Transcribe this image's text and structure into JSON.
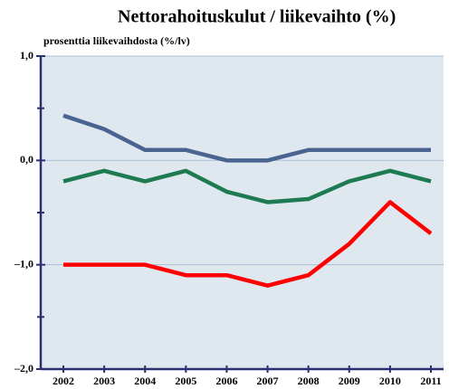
{
  "chart_data": {
    "type": "line",
    "title": "Nettorahoituskulut / liikevaihto (%)",
    "subtitle": "prosenttia liikevaihdosta (%/lv)",
    "categories": [
      "2002",
      "2003",
      "2004",
      "2005",
      "2006",
      "2007",
      "2008",
      "2009",
      "2010",
      "2011"
    ],
    "series": [
      {
        "color": "#4a6491",
        "values": [
          0.43,
          0.3,
          0.1,
          0.1,
          0,
          0,
          0.1,
          0.1,
          0.1,
          0.1
        ]
      },
      {
        "color": "#1e7a50",
        "values": [
          -0.2,
          -0.1,
          -0.2,
          -0.1,
          -0.3,
          -0.4,
          -0.37,
          -0.2,
          -0.1,
          -0.2
        ]
      },
      {
        "color": "#ff0000",
        "values": [
          -1.0,
          -1.0,
          -1.0,
          -1.1,
          -1.1,
          -1.2,
          -1.1,
          -0.8,
          -0.4,
          -0.7
        ]
      }
    ],
    "ylim": [
      -2,
      1
    ],
    "yticks": [
      {
        "value": 1,
        "label": "1,0"
      },
      {
        "value": 0,
        "label": "0,0"
      },
      {
        "value": -1,
        "label": "–1,0"
      },
      {
        "value": -2,
        "label": "–2,0"
      }
    ],
    "yminorticks": [
      0.5,
      -0.5,
      -1.5
    ],
    "grid": true
  }
}
